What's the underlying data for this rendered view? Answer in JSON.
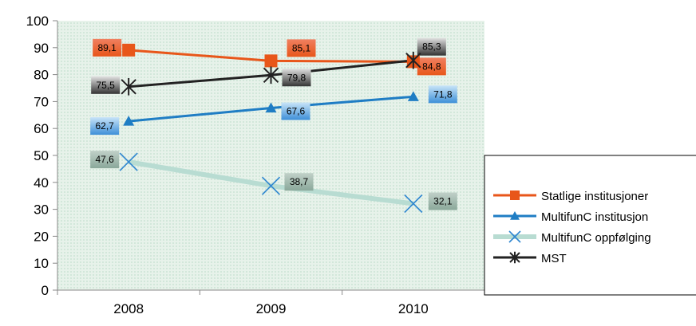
{
  "chart_data": {
    "type": "line",
    "title": "",
    "xlabel": "",
    "ylabel": "",
    "categories": [
      "2008",
      "2009",
      "2010"
    ],
    "ylim": [
      0,
      100
    ],
    "yticks": [
      0,
      10,
      20,
      30,
      40,
      50,
      60,
      70,
      80,
      90,
      100
    ],
    "grid": false,
    "legend_position": "right",
    "series": [
      {
        "name": "Statlige institusjoner",
        "values": [
          89.1,
          85.1,
          84.8
        ],
        "labels": [
          "89,1",
          "85,1",
          "84,8"
        ],
        "marker": "square",
        "color": "#E8561A",
        "label_colors": [
          "#F08060",
          "#E8561A"
        ]
      },
      {
        "name": "MultifunC institusjon",
        "values": [
          62.7,
          67.6,
          71.8
        ],
        "labels": [
          "62,7",
          "67,6",
          "71,8"
        ],
        "marker": "triangle",
        "color": "#1F7DC4",
        "label_colors": [
          "#C8E4F8",
          "#3D8FD8"
        ]
      },
      {
        "name": "MultifunC oppfølging",
        "values": [
          47.6,
          38.7,
          32.1
        ],
        "labels": [
          "47,6",
          "38,7",
          "32,1"
        ],
        "marker": "x",
        "color": "#B8DCD2",
        "marker_color": "#2E86D0",
        "label_colors": [
          "#C0D0C8",
          "#8AA89A"
        ]
      },
      {
        "name": "MST",
        "values": [
          75.5,
          79.8,
          85.3
        ],
        "labels": [
          "75,5",
          "79,8",
          "85,3"
        ],
        "marker": "star",
        "color": "#222222",
        "label_colors": [
          "#E0E0E0",
          "#333333"
        ]
      }
    ],
    "label_order": [
      0,
      1,
      2,
      3
    ]
  }
}
